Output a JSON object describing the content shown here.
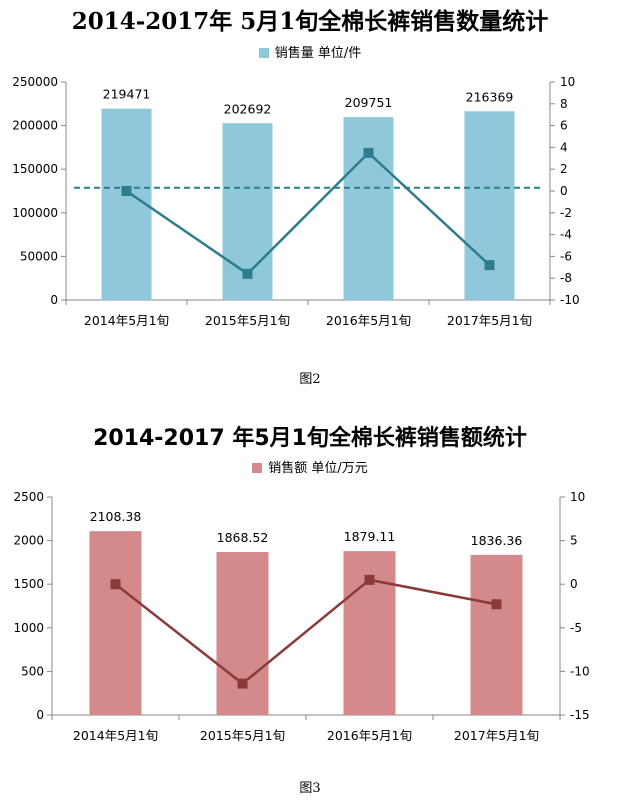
{
  "chart_data": [
    {
      "type": "bar",
      "title": "2014-2017年 5月1旬全棉长裤销售数量统计",
      "legend": "销售量  单位/件",
      "caption": "图2",
      "categories": [
        "2014年5月1旬",
        "2015年5月1旬",
        "2016年5月1旬",
        "2017年5月1旬"
      ],
      "series": [
        {
          "name": "销售量  单位/件",
          "type": "bar",
          "axis": "left",
          "values": [
            219471,
            202692,
            209751,
            216369
          ],
          "color": "#8ec8da"
        },
        {
          "type": "line",
          "axis": "right",
          "values": [
            0,
            -7.6,
            3.5,
            -6.8
          ],
          "color": "#2e7d8c"
        }
      ],
      "data_labels": [
        "219471",
        "202692",
        "209751",
        "216369"
      ],
      "reference_line": {
        "axis": "right",
        "value": 0.3,
        "style": "dashed",
        "color": "#2e7d8c"
      },
      "ylim_left": [
        0,
        250000
      ],
      "yticks_left": [
        "0",
        "50000",
        "100000",
        "150000",
        "200000",
        "250000"
      ],
      "ylim_right": [
        -10,
        10
      ],
      "yticks_right": [
        "-10",
        "-8",
        "-6",
        "-4",
        "-2",
        "0",
        "2",
        "4",
        "6",
        "8",
        "10"
      ],
      "legend_position": "top",
      "grid": false
    },
    {
      "type": "bar",
      "title": "2014-2017 年5月1旬全棉长裤销售额统计",
      "legend": "销售额  单位/万元",
      "caption": "图3",
      "categories": [
        "2014年5月1旬",
        "2015年5月1旬",
        "2016年5月1旬",
        "2017年5月1旬"
      ],
      "series": [
        {
          "name": "销售额  单位/万元",
          "type": "bar",
          "axis": "left",
          "values": [
            2108.38,
            1868.52,
            1879.11,
            1836.36
          ],
          "color": "#d48a8a"
        },
        {
          "type": "line",
          "axis": "right",
          "values": [
            0,
            -11.4,
            0.5,
            -2.3
          ],
          "color": "#8b3a3a"
        }
      ],
      "data_labels": [
        "2108.38",
        "1868.52",
        "1879.11",
        "1836.36"
      ],
      "ylim_left": [
        0,
        2500
      ],
      "yticks_left": [
        "0",
        "500",
        "1000",
        "1500",
        "2000",
        "2500"
      ],
      "ylim_right": [
        -15,
        10
      ],
      "yticks_right": [
        "-15",
        "-10",
        "-5",
        "0",
        "5",
        "10"
      ],
      "legend_position": "top",
      "grid": false
    }
  ]
}
